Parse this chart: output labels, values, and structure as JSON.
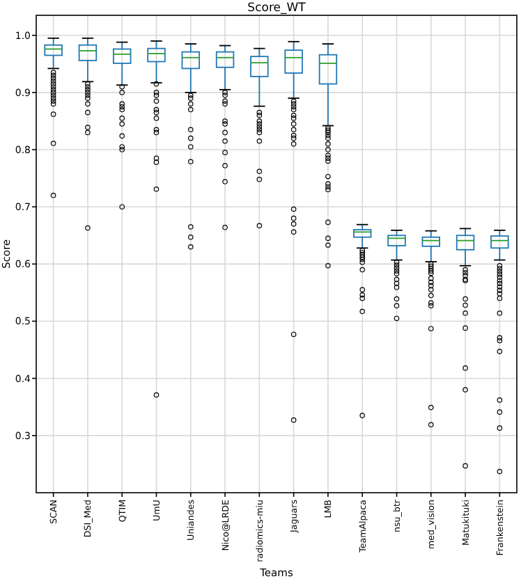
{
  "chart_data": {
    "type": "box",
    "title": "Score_WT",
    "xlabel": "Teams",
    "ylabel": "Score",
    "categories": [
      "SCAN",
      "DSI_Med",
      "QTIM",
      "UmU",
      "Uniandes",
      "Nico@LRDE",
      "radiomics-miu",
      "Jaguars",
      "LMB",
      "TeamAlpaca",
      "nsu_btr",
      "med_vision",
      "Matukituki",
      "Frankenstein"
    ],
    "ylim": [
      0.2,
      1.035
    ],
    "yticks": [
      0.3,
      0.4,
      0.5,
      0.6,
      0.7,
      0.8,
      0.9,
      {
        "value": 1,
        "label": "1.0"
      }
    ],
    "grid": true,
    "series": [
      {
        "color": "#1f77b4",
        "boxes": [
          {
            "low": 0.942,
            "q1": 0.965,
            "median": 0.976,
            "q3": 0.983,
            "high": 0.995,
            "outliers": [
              0.935,
              0.93,
              0.925,
              0.92,
              0.915,
              0.91,
              0.905,
              0.9,
              0.895,
              0.89,
              0.885,
              0.88,
              0.862,
              0.811,
              0.72
            ]
          },
          {
            "low": 0.919,
            "q1": 0.956,
            "median": 0.973,
            "q3": 0.983,
            "high": 0.995,
            "outliers": [
              0.915,
              0.91,
              0.905,
              0.9,
              0.895,
              0.89,
              0.88,
              0.865,
              0.839,
              0.83,
              0.663
            ]
          },
          {
            "low": 0.913,
            "q1": 0.951,
            "median": 0.967,
            "q3": 0.976,
            "high": 0.988,
            "outliers": [
              0.91,
              0.9,
              0.88,
              0.875,
              0.87,
              0.855,
              0.845,
              0.824,
              0.805,
              0.8,
              0.7
            ]
          },
          {
            "low": 0.917,
            "q1": 0.954,
            "median": 0.968,
            "q3": 0.977,
            "high": 0.99,
            "outliers": [
              0.915,
              0.9,
              0.895,
              0.885,
              0.87,
              0.865,
              0.855,
              0.835,
              0.83,
              0.785,
              0.778,
              0.731,
              0.371
            ]
          },
          {
            "low": 0.9,
            "q1": 0.942,
            "median": 0.961,
            "q3": 0.971,
            "high": 0.985,
            "outliers": [
              0.895,
              0.89,
              0.88,
              0.87,
              0.835,
              0.82,
              0.805,
              0.779,
              0.665,
              0.647,
              0.63
            ]
          },
          {
            "low": 0.905,
            "q1": 0.944,
            "median": 0.961,
            "q3": 0.971,
            "high": 0.982,
            "outliers": [
              0.9,
              0.895,
              0.885,
              0.88,
              0.85,
              0.845,
              0.83,
              0.815,
              0.795,
              0.772,
              0.744,
              0.664
            ]
          },
          {
            "low": 0.876,
            "q1": 0.928,
            "median": 0.952,
            "q3": 0.963,
            "high": 0.977,
            "outliers": [
              0.865,
              0.86,
              0.85,
              0.845,
              0.84,
              0.835,
              0.83,
              0.815,
              0.762,
              0.748,
              0.667
            ]
          },
          {
            "low": 0.89,
            "q1": 0.934,
            "median": 0.961,
            "q3": 0.974,
            "high": 0.989,
            "outliers": [
              0.885,
              0.88,
              0.875,
              0.87,
              0.86,
              0.855,
              0.845,
              0.835,
              0.825,
              0.82,
              0.81,
              0.696,
              0.68,
              0.67,
              0.656,
              0.477,
              0.327
            ]
          },
          {
            "low": 0.842,
            "q1": 0.915,
            "median": 0.951,
            "q3": 0.966,
            "high": 0.985,
            "outliers": [
              0.838,
              0.834,
              0.83,
              0.825,
              0.82,
              0.81,
              0.8,
              0.79,
              0.785,
              0.78,
              0.753,
              0.74,
              0.735,
              0.73,
              0.673,
              0.645,
              0.633,
              0.597
            ]
          },
          {
            "low": 0.628,
            "q1": 0.647,
            "median": 0.656,
            "q3": 0.66,
            "high": 0.669,
            "outliers": [
              0.624,
              0.62,
              0.616,
              0.612,
              0.608,
              0.603,
              0.59,
              0.555,
              0.546,
              0.54,
              0.517,
              0.335
            ]
          },
          {
            "low": 0.607,
            "q1": 0.632,
            "median": 0.645,
            "q3": 0.65,
            "high": 0.659,
            "outliers": [
              0.603,
              0.598,
              0.593,
              0.588,
              0.583,
              0.573,
              0.566,
              0.559,
              0.539,
              0.527,
              0.505
            ]
          },
          {
            "low": 0.604,
            "q1": 0.631,
            "median": 0.641,
            "q3": 0.647,
            "high": 0.658,
            "outliers": [
              0.6,
              0.596,
              0.592,
              0.588,
              0.584,
              0.575,
              0.568,
              0.562,
              0.555,
              0.545,
              0.532,
              0.527,
              0.487,
              0.349,
              0.319
            ]
          },
          {
            "low": 0.597,
            "q1": 0.625,
            "median": 0.641,
            "q3": 0.65,
            "high": 0.662,
            "outliers": [
              0.59,
              0.585,
              0.58,
              0.573,
              0.571,
              0.539,
              0.528,
              0.514,
              0.488,
              0.418,
              0.38,
              0.247
            ]
          },
          {
            "low": 0.607,
            "q1": 0.628,
            "median": 0.641,
            "q3": 0.649,
            "high": 0.659,
            "outliers": [
              0.597,
              0.592,
              0.587,
              0.582,
              0.577,
              0.571,
              0.566,
              0.56,
              0.554,
              0.548,
              0.54,
              0.514,
              0.471,
              0.466,
              0.447,
              0.362,
              0.341,
              0.313,
              0.237
            ]
          }
        ]
      }
    ]
  }
}
